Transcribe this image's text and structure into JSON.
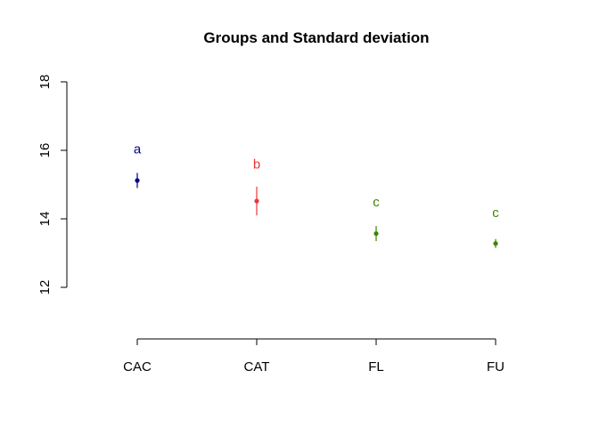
{
  "chart_data": {
    "type": "scatter",
    "title": "Groups and Standard deviation",
    "xlabel": "",
    "ylabel": "",
    "categories": [
      "CAC",
      "CAT",
      "FL",
      "FU"
    ],
    "means": [
      15.12,
      14.52,
      13.57,
      13.28
    ],
    "sd": [
      0.22,
      0.42,
      0.22,
      0.13
    ],
    "group_letters": [
      "a",
      "b",
      "c",
      "c"
    ],
    "letter_y": [
      16.04,
      15.6,
      14.5,
      14.18
    ],
    "colors": [
      "#00008B",
      "#E8363A",
      "#3A8500",
      "#3A8500"
    ],
    "ylim": [
      10.5,
      18
    ],
    "yticks": [
      12,
      14,
      16,
      18
    ],
    "ytick_labels": [
      "12",
      "14",
      "16",
      "18"
    ],
    "grid": false,
    "legend": "none"
  }
}
